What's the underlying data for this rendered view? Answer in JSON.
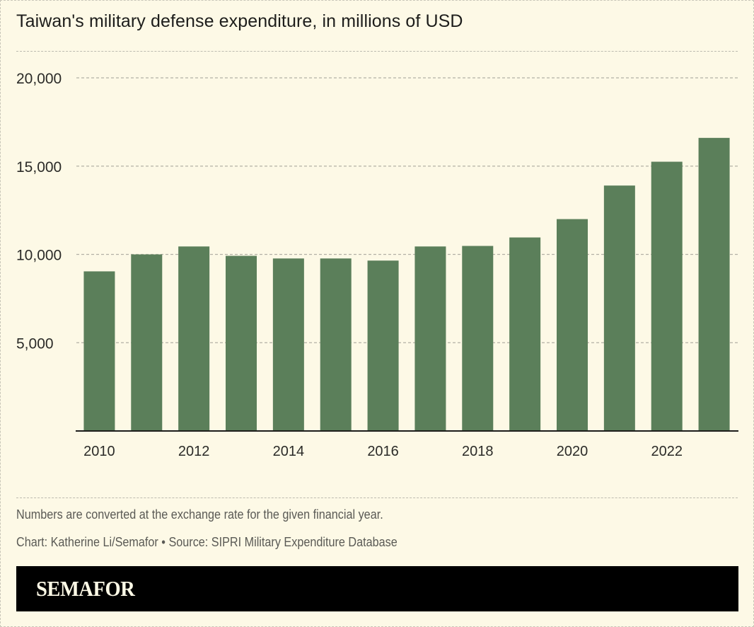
{
  "chart_data": {
    "type": "bar",
    "title": "Taiwan's military defense expenditure, in millions of USD",
    "xlabel": "",
    "ylabel": "",
    "categories": [
      "2010",
      "2011",
      "2012",
      "2013",
      "2014",
      "2015",
      "2016",
      "2017",
      "2018",
      "2019",
      "2020",
      "2021",
      "2022",
      "2023"
    ],
    "values": [
      9040,
      10000,
      10450,
      9920,
      9770,
      9770,
      9650,
      10450,
      10480,
      10960,
      12000,
      13900,
      15250,
      16600
    ],
    "x_tick_labels": [
      "2010",
      "2012",
      "2014",
      "2016",
      "2018",
      "2020",
      "2022"
    ],
    "y_ticks": [
      5000,
      10000,
      15000,
      20000
    ],
    "y_tick_labels": [
      "5,000",
      "10,000",
      "15,000",
      "20,000"
    ],
    "ylim": [
      0,
      20000
    ],
    "grid": true,
    "bar_color": "#5b7f5a"
  },
  "footer": {
    "note": "Numbers are converted at the exchange rate for the given financial year.",
    "credit": "Chart: Katherine Li/Semafor • Source: SIPRI Military Expenditure Database",
    "brand": "SEMAFOR"
  }
}
